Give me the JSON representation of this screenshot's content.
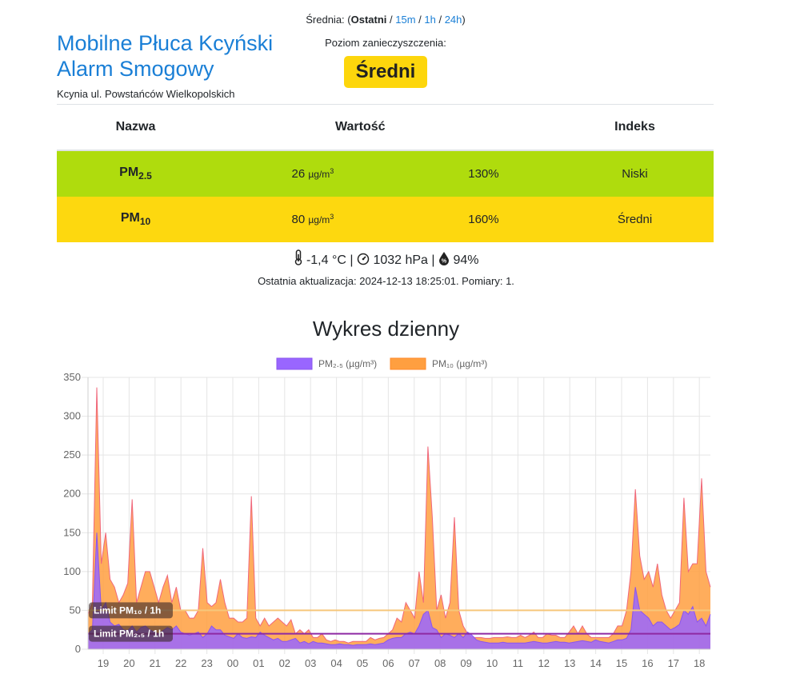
{
  "header": {
    "title": "Mobilne Płuca Kcyński Alarm Smogowy",
    "address": "Kcynia ul. Powstańców Wielkopolskich"
  },
  "averaging": {
    "label": "Średnia: (",
    "current": "Ostatni",
    "options": [
      "15m",
      "1h",
      "24h"
    ],
    "sep": " / ",
    "close": ")"
  },
  "pollution": {
    "label": "Poziom zanieczyszczenia:",
    "level": "Średni",
    "level_color": "#fdd60c"
  },
  "table": {
    "headers": {
      "name": "Nazwa",
      "value": "Wartość",
      "index": "Indeks"
    },
    "rows": [
      {
        "name": "PM",
        "sub": "2.5",
        "value": "26",
        "unit": "µg/m",
        "unit_sup": "3",
        "percent": "130%",
        "index": "Niski",
        "color": "#afdc0d"
      },
      {
        "name": "PM",
        "sub": "10",
        "value": "80",
        "unit": "µg/m",
        "unit_sup": "3",
        "percent": "160%",
        "index": "Średni",
        "color": "#fdd80f"
      }
    ]
  },
  "weather": {
    "temperature": "-1,4 °C",
    "pressure": "1032 hPa",
    "humidity": "94%",
    "sep": "|"
  },
  "updated": "Ostatnia aktualizacja: 2024-12-13 18:25:01. Pomiary: 1.",
  "chart_title": "Wykres dzienny",
  "colors": {
    "pm25": "#9966ff",
    "pm10": "#ff9f40",
    "limit10": "#f6c77b",
    "limit25": "#8e2aa3"
  },
  "chart_data": {
    "type": "area",
    "title": "",
    "xlabel": "",
    "ylabel": "",
    "ylim": [
      0,
      350
    ],
    "yticks": [
      0,
      50,
      100,
      150,
      200,
      250,
      300,
      350
    ],
    "xticks": [
      "19",
      "20",
      "21",
      "22",
      "23",
      "00",
      "01",
      "02",
      "03",
      "04",
      "05",
      "06",
      "07",
      "08",
      "09",
      "10",
      "11",
      "12",
      "13",
      "14",
      "15",
      "16",
      "17",
      "18"
    ],
    "grid": true,
    "legend_position": "top",
    "series": [
      {
        "name": "PM₂.₅ (µg/m³)",
        "color": "#9966ff",
        "values": [
          20,
          25,
          150,
          50,
          60,
          35,
          30,
          32,
          25,
          24,
          30,
          22,
          28,
          30,
          25,
          22,
          20,
          24,
          28,
          25,
          30,
          22,
          20,
          18,
          20,
          22,
          15,
          20,
          30,
          25,
          25,
          18,
          16,
          14,
          20,
          15,
          14,
          16,
          15,
          22,
          18,
          15,
          12,
          14,
          10,
          10,
          12,
          14,
          8,
          10,
          7,
          10,
          8,
          8,
          7,
          6,
          6,
          7,
          6,
          6,
          5,
          6,
          6,
          6,
          7,
          6,
          7,
          8,
          12,
          14,
          15,
          15,
          20,
          22,
          20,
          30,
          45,
          50,
          28,
          25,
          15,
          20,
          18,
          15,
          20,
          15,
          22,
          18,
          12,
          10,
          9,
          8,
          8,
          8,
          9,
          8,
          8,
          8,
          8,
          8,
          9,
          10,
          9,
          8,
          8,
          9,
          10,
          9,
          9,
          8,
          9,
          10,
          11,
          10,
          9,
          12,
          10,
          9,
          8,
          10,
          12,
          12,
          14,
          25,
          80,
          50,
          45,
          40,
          30,
          35,
          35,
          30,
          25,
          28,
          32,
          50,
          45,
          55,
          35,
          40,
          30,
          45
        ]
      },
      {
        "name": "PM₁₀ (µg/m³)",
        "color": "#ff9f40",
        "values": [
          45,
          60,
          337,
          110,
          150,
          90,
          80,
          60,
          70,
          85,
          193,
          60,
          80,
          100,
          100,
          80,
          60,
          80,
          95,
          60,
          80,
          50,
          50,
          40,
          40,
          50,
          130,
          60,
          55,
          60,
          90,
          60,
          40,
          40,
          35,
          35,
          40,
          197,
          40,
          30,
          40,
          30,
          35,
          40,
          35,
          30,
          38,
          20,
          25,
          20,
          25,
          15,
          15,
          20,
          12,
          10,
          12,
          10,
          10,
          8,
          10,
          10,
          10,
          10,
          15,
          12,
          14,
          15,
          20,
          25,
          40,
          35,
          60,
          50,
          40,
          100,
          60,
          261,
          170,
          50,
          70,
          40,
          60,
          170,
          50,
          30,
          20,
          15,
          15,
          15,
          14,
          14,
          15,
          15,
          15,
          16,
          15,
          15,
          18,
          15,
          18,
          22,
          15,
          15,
          20,
          18,
          18,
          15,
          15,
          22,
          30,
          20,
          30,
          20,
          15,
          15,
          15,
          15,
          15,
          20,
          30,
          30,
          50,
          100,
          206,
          120,
          90,
          100,
          80,
          110,
          70,
          50,
          40,
          50,
          60,
          195,
          100,
          110,
          110,
          220,
          100,
          80
        ]
      }
    ],
    "limits": [
      {
        "label": "Limit PM₁₀ / 1h",
        "value": 50,
        "color": "#f6c77b"
      },
      {
        "label": "Limit PM₂.₅ / 1h",
        "value": 20,
        "color": "#8e2aa3"
      }
    ]
  }
}
